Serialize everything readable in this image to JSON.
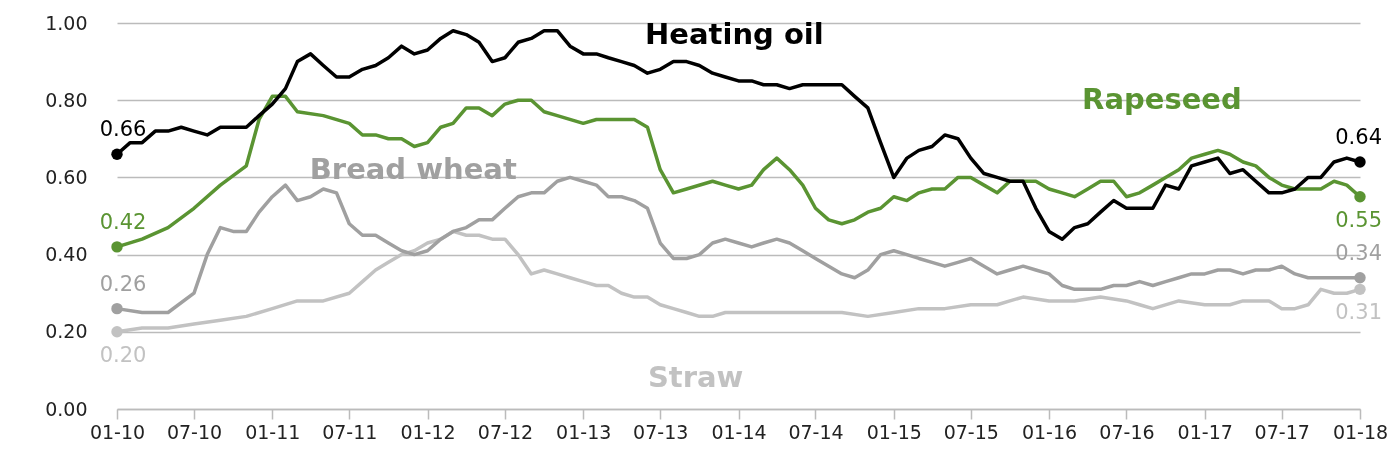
{
  "chart_data": {
    "type": "line",
    "x": [
      "2010-01",
      "2010-02",
      "2010-03",
      "2010-04",
      "2010-05",
      "2010-06",
      "2010-07",
      "2010-08",
      "2010-09",
      "2010-10",
      "2010-11",
      "2010-12",
      "2011-01",
      "2011-02",
      "2011-03",
      "2011-04",
      "2011-05",
      "2011-06",
      "2011-07",
      "2011-08",
      "2011-09",
      "2011-10",
      "2011-11",
      "2011-12",
      "2012-01",
      "2012-02",
      "2012-03",
      "2012-04",
      "2012-05",
      "2012-06",
      "2012-07",
      "2012-08",
      "2012-09",
      "2012-10",
      "2012-11",
      "2012-12",
      "2013-01",
      "2013-02",
      "2013-03",
      "2013-04",
      "2013-05",
      "2013-06",
      "2013-07",
      "2013-08",
      "2013-09",
      "2013-10",
      "2013-11",
      "2013-12",
      "2014-01",
      "2014-02",
      "2014-03",
      "2014-04",
      "2014-05",
      "2014-06",
      "2014-07",
      "2014-08",
      "2014-09",
      "2014-10",
      "2014-11",
      "2014-12",
      "2015-01",
      "2015-02",
      "2015-03",
      "2015-04",
      "2015-05",
      "2015-06",
      "2015-07",
      "2015-08",
      "2015-09",
      "2015-10",
      "2015-11",
      "2015-12",
      "2016-01",
      "2016-02",
      "2016-03",
      "2016-04",
      "2016-05",
      "2016-06",
      "2016-07",
      "2016-08",
      "2016-09",
      "2016-10",
      "2016-11",
      "2016-12",
      "2017-01",
      "2017-02",
      "2017-03",
      "2017-04",
      "2017-05",
      "2017-06",
      "2017-07",
      "2017-08",
      "2017-09",
      "2017-10",
      "2017-11",
      "2017-12",
      "2018-01"
    ],
    "series": [
      {
        "name": "Heating oil",
        "color": "#000000",
        "values": [
          0.66,
          0.69,
          0.69,
          0.72,
          0.72,
          0.73,
          0.72,
          0.71,
          0.73,
          0.73,
          0.73,
          0.76,
          0.79,
          0.83,
          0.9,
          0.92,
          0.89,
          0.86,
          0.86,
          0.88,
          0.89,
          0.91,
          0.94,
          0.92,
          0.93,
          0.96,
          0.98,
          0.97,
          0.95,
          0.9,
          0.91,
          0.95,
          0.96,
          0.98,
          0.98,
          0.94,
          0.92,
          0.92,
          0.91,
          0.9,
          0.89,
          0.87,
          0.88,
          0.9,
          0.9,
          0.89,
          0.87,
          0.86,
          0.85,
          0.85,
          0.84,
          0.84,
          0.83,
          0.84,
          0.84,
          0.84,
          0.84,
          0.81,
          0.78,
          0.69,
          0.6,
          0.65,
          0.67,
          0.68,
          0.71,
          0.7,
          0.65,
          0.61,
          0.6,
          0.59,
          0.59,
          0.52,
          0.46,
          0.44,
          0.47,
          0.48,
          0.51,
          0.54,
          0.52,
          0.52,
          0.52,
          0.58,
          0.57,
          0.63,
          0.64,
          0.65,
          0.61,
          0.62,
          0.59,
          0.56,
          0.56,
          0.57,
          0.6,
          0.6,
          0.64,
          0.65,
          0.64
        ],
        "value_labels": [
          "0.66",
          null,
          null,
          null,
          null,
          null,
          null,
          null,
          null,
          null,
          null,
          null,
          null,
          null,
          null,
          null,
          null,
          null,
          null,
          null,
          null,
          null,
          null,
          null,
          null,
          null,
          null,
          null,
          null,
          null,
          null,
          null,
          null,
          null,
          null,
          null,
          null,
          null,
          null,
          null,
          null,
          null,
          null,
          null,
          null,
          null,
          null,
          null,
          null,
          null,
          null,
          null,
          null,
          null,
          null,
          null,
          null,
          null,
          null,
          null,
          null,
          null,
          null,
          null,
          null,
          null,
          null,
          null,
          null,
          null,
          null,
          null,
          null,
          null,
          null,
          null,
          null,
          null,
          null,
          null,
          null,
          null,
          null,
          null,
          null,
          null,
          null,
          null,
          null,
          null,
          null,
          null,
          null,
          null,
          null,
          null,
          "0.64"
        ]
      },
      {
        "name": "Rapeseed",
        "color": "#5a9432",
        "x": [
          "2010-01",
          "2010-03",
          "2010-05",
          "2010-07",
          "2010-09",
          "2010-11",
          "2010-12",
          "2011-01",
          "2011-02",
          "2011-03",
          "2011-05",
          "2011-07",
          "2011-08",
          "2011-09",
          "2011-10",
          "2011-11",
          "2011-12",
          "2012-01",
          "2012-02",
          "2012-03",
          "2012-04",
          "2012-05",
          "2012-06",
          "2012-07",
          "2012-08",
          "2012-09",
          "2012-10",
          "2012-11",
          "2013-01",
          "2013-02",
          "2013-03",
          "2013-05",
          "2013-06",
          "2013-07",
          "2013-08",
          "2013-09",
          "2013-11",
          "2013-12",
          "2014-01",
          "2014-02",
          "2014-03",
          "2014-04",
          "2014-05",
          "2014-06",
          "2014-07",
          "2014-08",
          "2014-09",
          "2014-10",
          "2014-11",
          "2014-12",
          "2015-01",
          "2015-02",
          "2015-03",
          "2015-04",
          "2015-05",
          "2015-06",
          "2015-07",
          "2015-08",
          "2015-09",
          "2015-10",
          "2015-11",
          "2015-12",
          "2016-01",
          "2016-02",
          "2016-03",
          "2016-04",
          "2016-05",
          "2016-06",
          "2016-07",
          "2016-08",
          "2016-09",
          "2016-10",
          "2016-11",
          "2016-12",
          "2017-01",
          "2017-02",
          "2017-03",
          "2017-04",
          "2017-05",
          "2017-06",
          "2017-07",
          "2017-08",
          "2017-09",
          "2017-10",
          "2017-11",
          "2017-12",
          "2018-01"
        ],
        "values": [
          0.42,
          0.44,
          0.47,
          0.52,
          0.58,
          0.63,
          0.75,
          0.81,
          0.81,
          0.77,
          0.76,
          0.74,
          0.71,
          0.71,
          0.7,
          0.7,
          0.68,
          0.69,
          0.73,
          0.74,
          0.78,
          0.78,
          0.76,
          0.79,
          0.8,
          0.8,
          0.77,
          0.76,
          0.74,
          0.75,
          0.75,
          0.75,
          0.73,
          0.62,
          0.56,
          0.57,
          0.59,
          0.58,
          0.57,
          0.58,
          0.62,
          0.65,
          0.62,
          0.58,
          0.52,
          0.49,
          0.48,
          0.49,
          0.51,
          0.52,
          0.55,
          0.54,
          0.56,
          0.57,
          0.57,
          0.6,
          0.6,
          0.58,
          0.56,
          0.59,
          0.59,
          0.59,
          0.57,
          0.56,
          0.55,
          0.57,
          0.59,
          0.59,
          0.55,
          0.56,
          0.58,
          0.6,
          0.62,
          0.65,
          0.66,
          0.67,
          0.66,
          0.64,
          0.63,
          0.6,
          0.58,
          0.57,
          0.57,
          0.57,
          0.59,
          0.58,
          0.55
        ],
        "value_labels": [
          "0.42",
          null,
          null,
          null,
          null,
          null,
          null,
          null,
          null,
          null,
          null,
          null,
          null,
          null,
          null,
          null,
          null,
          null,
          null,
          null,
          null,
          null,
          null,
          null,
          null,
          null,
          null,
          null,
          null,
          null,
          null,
          null,
          null,
          null,
          null,
          null,
          null,
          null,
          null,
          null,
          null,
          null,
          null,
          null,
          null,
          null,
          null,
          null,
          null,
          null,
          null,
          null,
          null,
          null,
          null,
          null,
          null,
          null,
          null,
          null,
          null,
          null,
          null,
          null,
          null,
          null,
          null,
          null,
          null,
          null,
          null,
          null,
          null,
          null,
          null,
          null,
          null,
          null,
          null,
          null,
          null,
          null,
          null,
          null,
          null,
          null,
          "0.55"
        ]
      },
      {
        "name": "Bread wheat",
        "color": "#a0a0a0",
        "x": [
          "2010-01",
          "2010-03",
          "2010-05",
          "2010-07",
          "2010-08",
          "2010-09",
          "2010-10",
          "2010-11",
          "2010-12",
          "2011-01",
          "2011-02",
          "2011-03",
          "2011-04",
          "2011-05",
          "2011-06",
          "2011-07",
          "2011-08",
          "2011-09",
          "2011-10",
          "2011-11",
          "2011-12",
          "2012-01",
          "2012-02",
          "2012-03",
          "2012-04",
          "2012-05",
          "2012-06",
          "2012-07",
          "2012-08",
          "2012-09",
          "2012-10",
          "2012-11",
          "2012-12",
          "2013-01",
          "2013-02",
          "2013-03",
          "2013-04",
          "2013-05",
          "2013-06",
          "2013-07",
          "2013-08",
          "2013-09",
          "2013-10",
          "2013-11",
          "2013-12",
          "2014-01",
          "2014-02",
          "2014-03",
          "2014-04",
          "2014-05",
          "2014-06",
          "2014-07",
          "2014-08",
          "2014-09",
          "2014-10",
          "2014-11",
          "2014-12",
          "2015-01",
          "2015-02",
          "2015-03",
          "2015-04",
          "2015-05",
          "2015-06",
          "2015-07",
          "2015-08",
          "2015-09",
          "2015-10",
          "2015-11",
          "2015-12",
          "2016-01",
          "2016-02",
          "2016-03",
          "2016-04",
          "2016-05",
          "2016-06",
          "2016-07",
          "2016-08",
          "2016-09",
          "2016-10",
          "2016-11",
          "2016-12",
          "2017-01",
          "2017-02",
          "2017-03",
          "2017-04",
          "2017-05",
          "2017-06",
          "2017-07",
          "2017-08",
          "2017-09",
          "2017-10",
          "2017-11",
          "2017-12",
          "2018-01"
        ],
        "values": [
          0.26,
          0.25,
          0.25,
          0.3,
          0.4,
          0.47,
          0.46,
          0.46,
          0.51,
          0.55,
          0.58,
          0.54,
          0.55,
          0.57,
          0.56,
          0.48,
          0.45,
          0.45,
          0.43,
          0.41,
          0.4,
          0.41,
          0.44,
          0.46,
          0.47,
          0.49,
          0.49,
          0.52,
          0.55,
          0.56,
          0.56,
          0.59,
          0.6,
          0.59,
          0.58,
          0.55,
          0.55,
          0.54,
          0.52,
          0.43,
          0.39,
          0.39,
          0.4,
          0.43,
          0.44,
          0.43,
          0.42,
          0.43,
          0.44,
          0.43,
          0.41,
          0.39,
          0.37,
          0.35,
          0.34,
          0.36,
          0.4,
          0.41,
          0.4,
          0.39,
          0.38,
          0.37,
          0.38,
          0.39,
          0.37,
          0.35,
          0.36,
          0.37,
          0.36,
          0.35,
          0.32,
          0.31,
          0.31,
          0.31,
          0.32,
          0.32,
          0.33,
          0.32,
          0.33,
          0.34,
          0.35,
          0.35,
          0.36,
          0.36,
          0.35,
          0.36,
          0.36,
          0.37,
          0.35,
          0.34,
          0.34,
          0.34,
          0.34,
          0.34
        ],
        "value_labels": [
          "0.26",
          null,
          null,
          null,
          null,
          null,
          null,
          null,
          null,
          null,
          null,
          null,
          null,
          null,
          null,
          null,
          null,
          null,
          null,
          null,
          null,
          null,
          null,
          null,
          null,
          null,
          null,
          null,
          null,
          null,
          null,
          null,
          null,
          null,
          null,
          null,
          null,
          null,
          null,
          null,
          null,
          null,
          null,
          null,
          null,
          null,
          null,
          null,
          null,
          null,
          null,
          null,
          null,
          null,
          null,
          null,
          null,
          null,
          null,
          null,
          null,
          null,
          null,
          null,
          null,
          null,
          null,
          null,
          null,
          null,
          null,
          null,
          null,
          null,
          null,
          null,
          null,
          null,
          null,
          null,
          null,
          null,
          null,
          null,
          null,
          null,
          null,
          null,
          null,
          null,
          null,
          null,
          null,
          "0.34"
        ]
      },
      {
        "name": "Straw",
        "color": "#c2c2c2",
        "x": [
          "2010-01",
          "2010-03",
          "2010-05",
          "2010-07",
          "2010-09",
          "2010-11",
          "2011-01",
          "2011-03",
          "2011-05",
          "2011-07",
          "2011-08",
          "2011-09",
          "2011-10",
          "2011-11",
          "2011-12",
          "2012-01",
          "2012-02",
          "2012-03",
          "2012-04",
          "2012-05",
          "2012-06",
          "2012-07",
          "2012-08",
          "2012-09",
          "2012-10",
          "2012-11",
          "2012-12",
          "2013-01",
          "2013-02",
          "2013-03",
          "2013-04",
          "2013-05",
          "2013-06",
          "2013-07",
          "2013-08",
          "2013-09",
          "2013-10",
          "2013-11",
          "2013-12",
          "2014-01",
          "2014-03",
          "2014-05",
          "2014-07",
          "2014-09",
          "2014-11",
          "2015-01",
          "2015-03",
          "2015-05",
          "2015-07",
          "2015-09",
          "2015-10",
          "2015-11",
          "2016-01",
          "2016-03",
          "2016-05",
          "2016-07",
          "2016-08",
          "2016-09",
          "2016-11",
          "2017-01",
          "2017-03",
          "2017-04",
          "2017-06",
          "2017-07",
          "2017-08",
          "2017-09",
          "2017-10",
          "2017-11",
          "2017-12",
          "2018-01"
        ],
        "values": [
          0.2,
          0.21,
          0.21,
          0.22,
          0.23,
          0.24,
          0.26,
          0.28,
          0.28,
          0.3,
          0.33,
          0.36,
          0.38,
          0.4,
          0.41,
          0.43,
          0.44,
          0.46,
          0.45,
          0.45,
          0.44,
          0.44,
          0.4,
          0.35,
          0.36,
          0.35,
          0.34,
          0.33,
          0.32,
          0.32,
          0.3,
          0.29,
          0.29,
          0.27,
          0.26,
          0.25,
          0.24,
          0.24,
          0.25,
          0.25,
          0.25,
          0.25,
          0.25,
          0.25,
          0.24,
          0.25,
          0.26,
          0.26,
          0.27,
          0.27,
          0.28,
          0.29,
          0.28,
          0.28,
          0.29,
          0.28,
          0.27,
          0.26,
          0.28,
          0.27,
          0.27,
          0.28,
          0.28,
          0.26,
          0.26,
          0.27,
          0.31,
          0.3,
          0.3,
          0.31
        ],
        "value_labels": [
          "0.20",
          null,
          null,
          null,
          null,
          null,
          null,
          null,
          null,
          null,
          null,
          null,
          null,
          null,
          null,
          null,
          null,
          null,
          null,
          null,
          null,
          null,
          null,
          null,
          null,
          null,
          null,
          null,
          null,
          null,
          null,
          null,
          null,
          null,
          null,
          null,
          null,
          null,
          null,
          null,
          null,
          null,
          null,
          null,
          null,
          null,
          null,
          null,
          null,
          null,
          null,
          null,
          null,
          null,
          null,
          null,
          null,
          null,
          null,
          null,
          null,
          null,
          null,
          null,
          null,
          null,
          null,
          null,
          null,
          "0.31"
        ]
      }
    ],
    "xlim": [
      "2010-01",
      "2018-01"
    ],
    "xticks": [
      {
        "value": "2010-01",
        "label": "01-10"
      },
      {
        "value": "2010-07",
        "label": "07-10"
      },
      {
        "value": "2011-01",
        "label": "01-11"
      },
      {
        "value": "2011-07",
        "label": "07-11"
      },
      {
        "value": "2012-01",
        "label": "01-12"
      },
      {
        "value": "2012-07",
        "label": "07-12"
      },
      {
        "value": "2013-01",
        "label": "01-13"
      },
      {
        "value": "2013-07",
        "label": "07-13"
      },
      {
        "value": "2014-01",
        "label": "01-14"
      },
      {
        "value": "2014-07",
        "label": "07-14"
      },
      {
        "value": "2015-01",
        "label": "01-15"
      },
      {
        "value": "2015-07",
        "label": "07-15"
      },
      {
        "value": "2016-01",
        "label": "01-16"
      },
      {
        "value": "2016-07",
        "label": "07-16"
      },
      {
        "value": "2017-01",
        "label": "01-17"
      },
      {
        "value": "2017-07",
        "label": "07-17"
      },
      {
        "value": "2018-01",
        "label": "01-18"
      }
    ],
    "ylim": [
      0,
      1
    ],
    "yticks": [
      {
        "value": 0,
        "label": "0.00"
      },
      {
        "value": 0.2,
        "label": "0.20"
      },
      {
        "value": 0.4,
        "label": "0.40"
      },
      {
        "value": 0.6,
        "label": "0.60"
      },
      {
        "value": 0.8,
        "label": "0.80"
      },
      {
        "value": 1,
        "label": "1.00"
      }
    ],
    "grid": "y"
  }
}
